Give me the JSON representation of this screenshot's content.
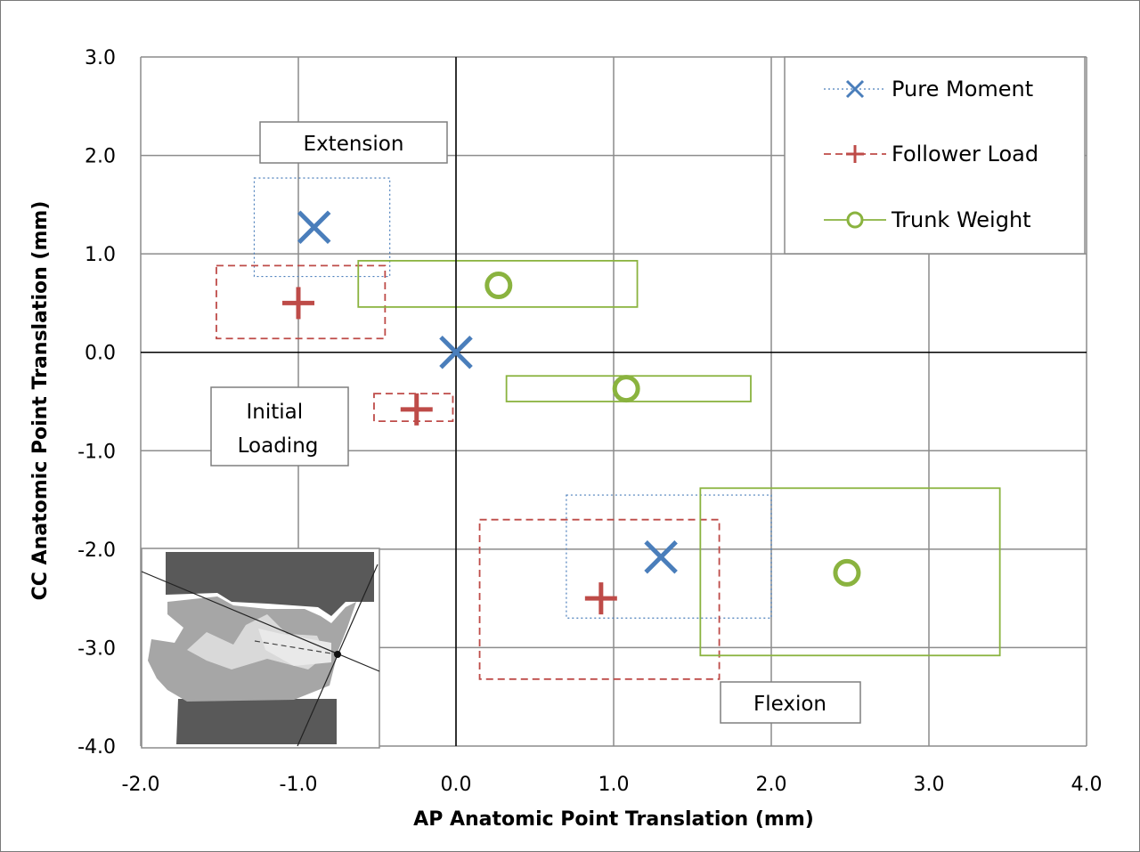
{
  "chart_data": {
    "type": "scatter",
    "title": "",
    "xlabel": "AP Anatomic Point Translation (mm)",
    "ylabel": "CC Anatomic Point Translation (mm)",
    "xlim": [
      -2.0,
      4.0
    ],
    "ylim": [
      -4.0,
      3.0
    ],
    "x_ticks": [
      "-2.0",
      "-1.0",
      "0.0",
      "1.0",
      "2.0",
      "3.0",
      "4.0"
    ],
    "y_ticks": [
      "3.0",
      "2.0",
      "1.0",
      "0.0",
      "-1.0",
      "-2.0",
      "-3.0",
      "-4.0"
    ],
    "grid": true,
    "legend_position": "top-right",
    "series": [
      {
        "name": "Pure Moment",
        "marker": "x",
        "color": "#4a7ebb",
        "line_style": "dotted",
        "points": [
          {
            "x": -0.9,
            "y": 1.27,
            "range_x": [
              -1.28,
              -0.42
            ],
            "range_y": [
              0.77,
              1.77
            ]
          },
          {
            "x": 0.0,
            "y": 0.0
          },
          {
            "x": 1.3,
            "y": -2.08,
            "range_x": [
              0.7,
              2.0
            ],
            "range_y": [
              -2.7,
              -1.45
            ]
          }
        ]
      },
      {
        "name": "Follower Load",
        "marker": "plus",
        "color": "#be4b48",
        "line_style": "dashed",
        "points": [
          {
            "x": -1.0,
            "y": 0.5,
            "range_x": [
              -1.52,
              -0.45
            ],
            "range_y": [
              0.14,
              0.88
            ]
          },
          {
            "x": -0.25,
            "y": -0.58,
            "range_x": [
              -0.52,
              -0.02
            ],
            "range_y": [
              -0.7,
              -0.42
            ]
          },
          {
            "x": 0.92,
            "y": -2.5,
            "range_x": [
              0.15,
              1.67
            ],
            "range_y": [
              -3.32,
              -1.7
            ]
          }
        ]
      },
      {
        "name": "Trunk Weight",
        "marker": "circle",
        "color": "#8ab33f",
        "line_style": "solid",
        "points": [
          {
            "x": 0.27,
            "y": 0.68,
            "range_x": [
              -0.62,
              1.15
            ],
            "range_y": [
              0.46,
              0.93
            ]
          },
          {
            "x": 1.08,
            "y": -0.37,
            "range_x": [
              0.32,
              1.87
            ],
            "range_y": [
              -0.5,
              -0.24
            ]
          },
          {
            "x": 2.48,
            "y": -2.24,
            "range_x": [
              1.55,
              3.45
            ],
            "range_y": [
              -3.08,
              -1.38
            ]
          }
        ]
      }
    ],
    "annotations": [
      {
        "text": "Extension"
      },
      {
        "text": "Initial\nLoading"
      },
      {
        "text": "Flexion"
      }
    ]
  }
}
